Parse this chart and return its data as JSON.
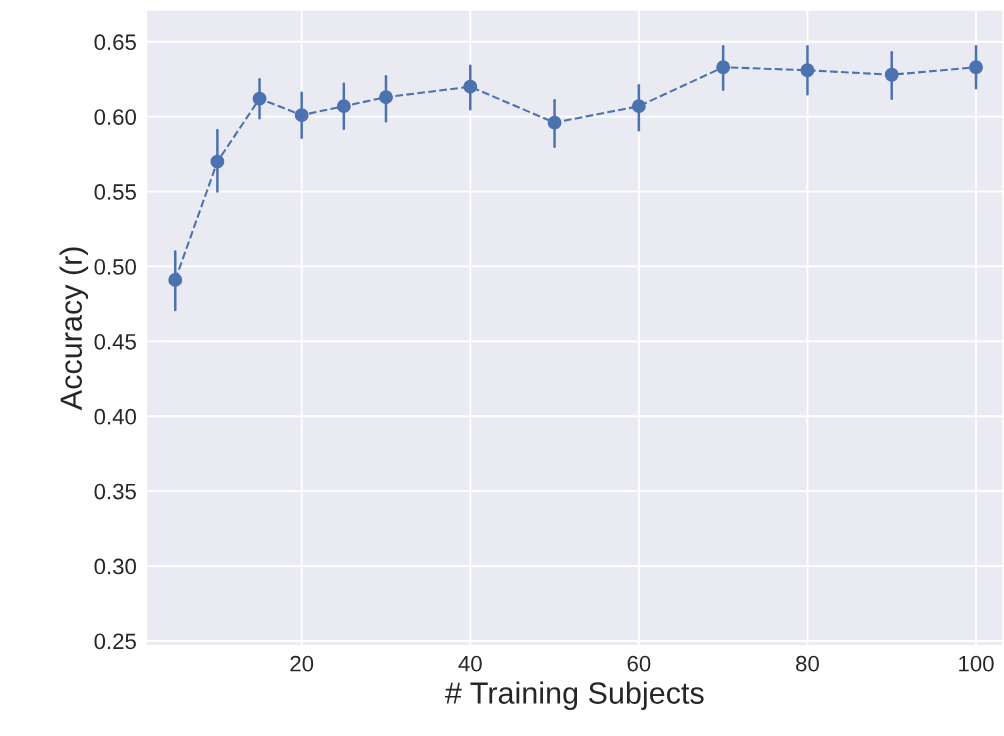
{
  "chart_data": {
    "type": "line",
    "xlabel": "# Training Subjects",
    "ylabel": "Accuracy (r)",
    "x": [
      5,
      10,
      15,
      20,
      25,
      30,
      40,
      50,
      60,
      70,
      80,
      90,
      100
    ],
    "series": [
      {
        "color": "#4c72b0",
        "values": [
          0.491,
          0.57,
          0.612,
          0.601,
          0.607,
          0.613,
          0.62,
          0.596,
          0.607,
          0.633,
          0.631,
          0.628,
          0.633
        ],
        "errors": [
          [
            0.471,
            0.51
          ],
          [
            0.55,
            0.591
          ],
          [
            0.599,
            0.625
          ],
          [
            0.586,
            0.616
          ],
          [
            0.592,
            0.622
          ],
          [
            0.597,
            0.627
          ],
          [
            0.605,
            0.634
          ],
          [
            0.58,
            0.611
          ],
          [
            0.591,
            0.621
          ],
          [
            0.618,
            0.647
          ],
          [
            0.615,
            0.647
          ],
          [
            0.612,
            0.643
          ],
          [
            0.619,
            0.647
          ]
        ]
      }
    ],
    "xlim": [
      1.6,
      103.2
    ],
    "ylim": [
      0.247,
      0.671
    ],
    "xticks": [
      20,
      40,
      60,
      80,
      100
    ],
    "yticks": [
      {
        "value": 0.25,
        "label": "0.25"
      },
      {
        "value": 0.3,
        "label": "0.30"
      },
      {
        "value": 0.35,
        "label": "0.35"
      },
      {
        "value": 0.4,
        "label": "0.40"
      },
      {
        "value": 0.45,
        "label": "0.45"
      },
      {
        "value": 0.5,
        "label": "0.50"
      },
      {
        "value": 0.55,
        "label": "0.55"
      },
      {
        "value": 0.6,
        "label": "0.60"
      },
      {
        "value": 0.65,
        "label": "0.65"
      }
    ],
    "grid": true,
    "marker": "circle",
    "line_style": "dashed",
    "legend": false
  }
}
